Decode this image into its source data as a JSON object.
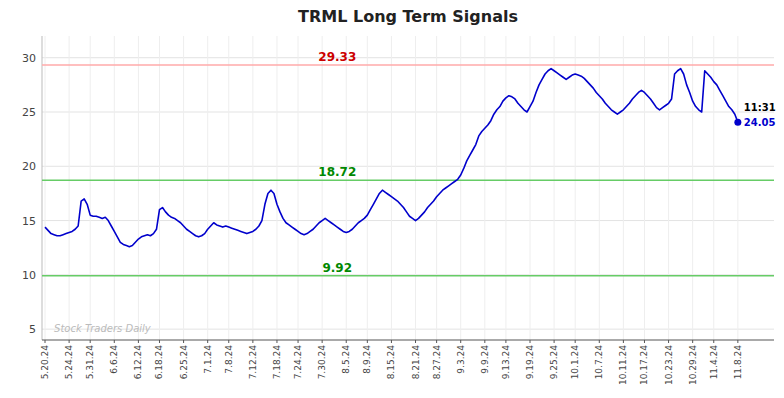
{
  "chart_data": {
    "type": "line",
    "title": "TRML Long Term Signals",
    "color": "#0000CC",
    "grid": true,
    "ylim": [
      4,
      32
    ],
    "yticks": [
      5,
      10,
      15,
      20,
      25,
      30
    ],
    "categories": [
      "5.20.24",
      null,
      null,
      null,
      null,
      null,
      null,
      null,
      "5.24.24",
      null,
      null,
      null,
      null,
      null,
      null,
      "5.31.24",
      null,
      null,
      null,
      null,
      null,
      null,
      null,
      "6.6.24",
      null,
      null,
      null,
      null,
      null,
      null,
      null,
      "6.12.24",
      null,
      null,
      null,
      null,
      null,
      null,
      "6.18.24",
      null,
      null,
      null,
      null,
      null,
      null,
      null,
      "6.25.24",
      null,
      null,
      null,
      null,
      null,
      null,
      null,
      "7.1.24",
      null,
      null,
      null,
      null,
      null,
      null,
      "7.8.24",
      null,
      null,
      null,
      null,
      null,
      null,
      null,
      "7.12.24",
      null,
      null,
      null,
      null,
      null,
      null,
      null,
      "7.18.24",
      null,
      null,
      null,
      null,
      null,
      null,
      "7.24.24",
      null,
      null,
      null,
      null,
      null,
      null,
      null,
      "7.30.24",
      null,
      null,
      null,
      null,
      null,
      null,
      null,
      "8.5.24",
      null,
      null,
      null,
      null,
      null,
      null,
      "8.9.24",
      null,
      null,
      null,
      null,
      null,
      null,
      null,
      "8.15.24",
      null,
      null,
      null,
      null,
      null,
      null,
      null,
      "8.21.24",
      null,
      null,
      null,
      null,
      null,
      null,
      "8.27.24",
      null,
      null,
      null,
      null,
      null,
      null,
      null,
      "9.3.24",
      null,
      null,
      null,
      null,
      null,
      null,
      null,
      "9.9.24",
      null,
      null,
      null,
      null,
      null,
      null,
      "9.13.24",
      null,
      null,
      null,
      null,
      null,
      null,
      null,
      "9.19.24",
      null,
      null,
      null,
      null,
      null,
      null,
      null,
      "9.25.24",
      null,
      null,
      null,
      null,
      null,
      null,
      "10.1.24",
      null,
      null,
      null,
      null,
      null,
      null,
      null,
      "10.7.24",
      null,
      null,
      null,
      null,
      null,
      null,
      null,
      "10.11.24",
      null,
      null,
      null,
      null,
      null,
      null,
      "10.17.24",
      null,
      null,
      null,
      null,
      null,
      null,
      null,
      "10.23.24",
      null,
      null,
      null,
      null,
      null,
      null,
      null,
      "10.29.24",
      null,
      null,
      null,
      null,
      null,
      null,
      "11.4.24",
      null,
      null,
      null,
      null,
      null,
      null,
      null,
      "11.8.24"
    ],
    "values": [
      14.4,
      14.1,
      13.8,
      13.7,
      13.6,
      13.6,
      13.7,
      13.8,
      13.9,
      14.0,
      14.2,
      14.5,
      16.8,
      17.0,
      16.5,
      15.5,
      15.4,
      15.4,
      15.3,
      15.2,
      15.3,
      15.0,
      14.5,
      14.0,
      13.5,
      13.0,
      12.8,
      12.7,
      12.6,
      12.7,
      13.0,
      13.3,
      13.5,
      13.6,
      13.7,
      13.6,
      13.8,
      14.2,
      16.0,
      16.2,
      15.8,
      15.5,
      15.3,
      15.2,
      15.0,
      14.8,
      14.5,
      14.2,
      14.0,
      13.8,
      13.6,
      13.5,
      13.6,
      13.8,
      14.2,
      14.5,
      14.8,
      14.6,
      14.5,
      14.4,
      14.5,
      14.4,
      14.3,
      14.2,
      14.1,
      14.0,
      13.9,
      13.8,
      13.9,
      14.0,
      14.2,
      14.5,
      15.0,
      16.5,
      17.5,
      17.8,
      17.5,
      16.5,
      15.8,
      15.2,
      14.8,
      14.6,
      14.4,
      14.2,
      14.0,
      13.8,
      13.7,
      13.8,
      14.0,
      14.2,
      14.5,
      14.8,
      15.0,
      15.2,
      15.0,
      14.8,
      14.6,
      14.4,
      14.2,
      14.0,
      13.9,
      14.0,
      14.2,
      14.5,
      14.8,
      15.0,
      15.2,
      15.5,
      16.0,
      16.5,
      17.0,
      17.5,
      17.8,
      17.6,
      17.4,
      17.2,
      17.0,
      16.8,
      16.5,
      16.2,
      15.8,
      15.4,
      15.2,
      15.0,
      15.2,
      15.5,
      15.8,
      16.2,
      16.5,
      16.8,
      17.2,
      17.5,
      17.8,
      18.0,
      18.2,
      18.4,
      18.6,
      18.8,
      19.2,
      19.8,
      20.5,
      21.0,
      21.5,
      22.0,
      22.8,
      23.2,
      23.5,
      23.8,
      24.2,
      24.8,
      25.2,
      25.5,
      26.0,
      26.3,
      26.5,
      26.4,
      26.2,
      25.8,
      25.5,
      25.2,
      25.0,
      25.5,
      26.0,
      26.8,
      27.5,
      28.0,
      28.5,
      28.8,
      29.0,
      28.8,
      28.6,
      28.4,
      28.2,
      28.0,
      28.2,
      28.4,
      28.5,
      28.4,
      28.3,
      28.1,
      27.8,
      27.5,
      27.2,
      26.8,
      26.5,
      26.2,
      25.8,
      25.5,
      25.2,
      25.0,
      24.8,
      25.0,
      25.2,
      25.5,
      25.8,
      26.2,
      26.5,
      26.8,
      27.0,
      26.8,
      26.5,
      26.2,
      25.8,
      25.4,
      25.2,
      25.4,
      25.6,
      25.8,
      26.2,
      28.5,
      28.8,
      29.0,
      28.5,
      27.5,
      26.8,
      26.0,
      25.5,
      25.2,
      25.0,
      28.8,
      28.5,
      28.2,
      27.8,
      27.5,
      27.0,
      26.5,
      26.0,
      25.5,
      25.2,
      24.8,
      24.05
    ],
    "hlines": [
      {
        "value": 29.33,
        "label": "29.33",
        "color": "#ffaaaa",
        "label_color": "#cc0000"
      },
      {
        "value": 18.72,
        "label": "18.72",
        "color": "#66cc66",
        "label_color": "#008800"
      },
      {
        "value": 9.92,
        "label": "9.92",
        "color": "#66cc66",
        "label_color": "#008800"
      }
    ],
    "annotations": [
      {
        "text": "11:31",
        "color": "#000000"
      },
      {
        "text": "Stock Traders Daily",
        "color": "#bbbbbb"
      }
    ]
  }
}
